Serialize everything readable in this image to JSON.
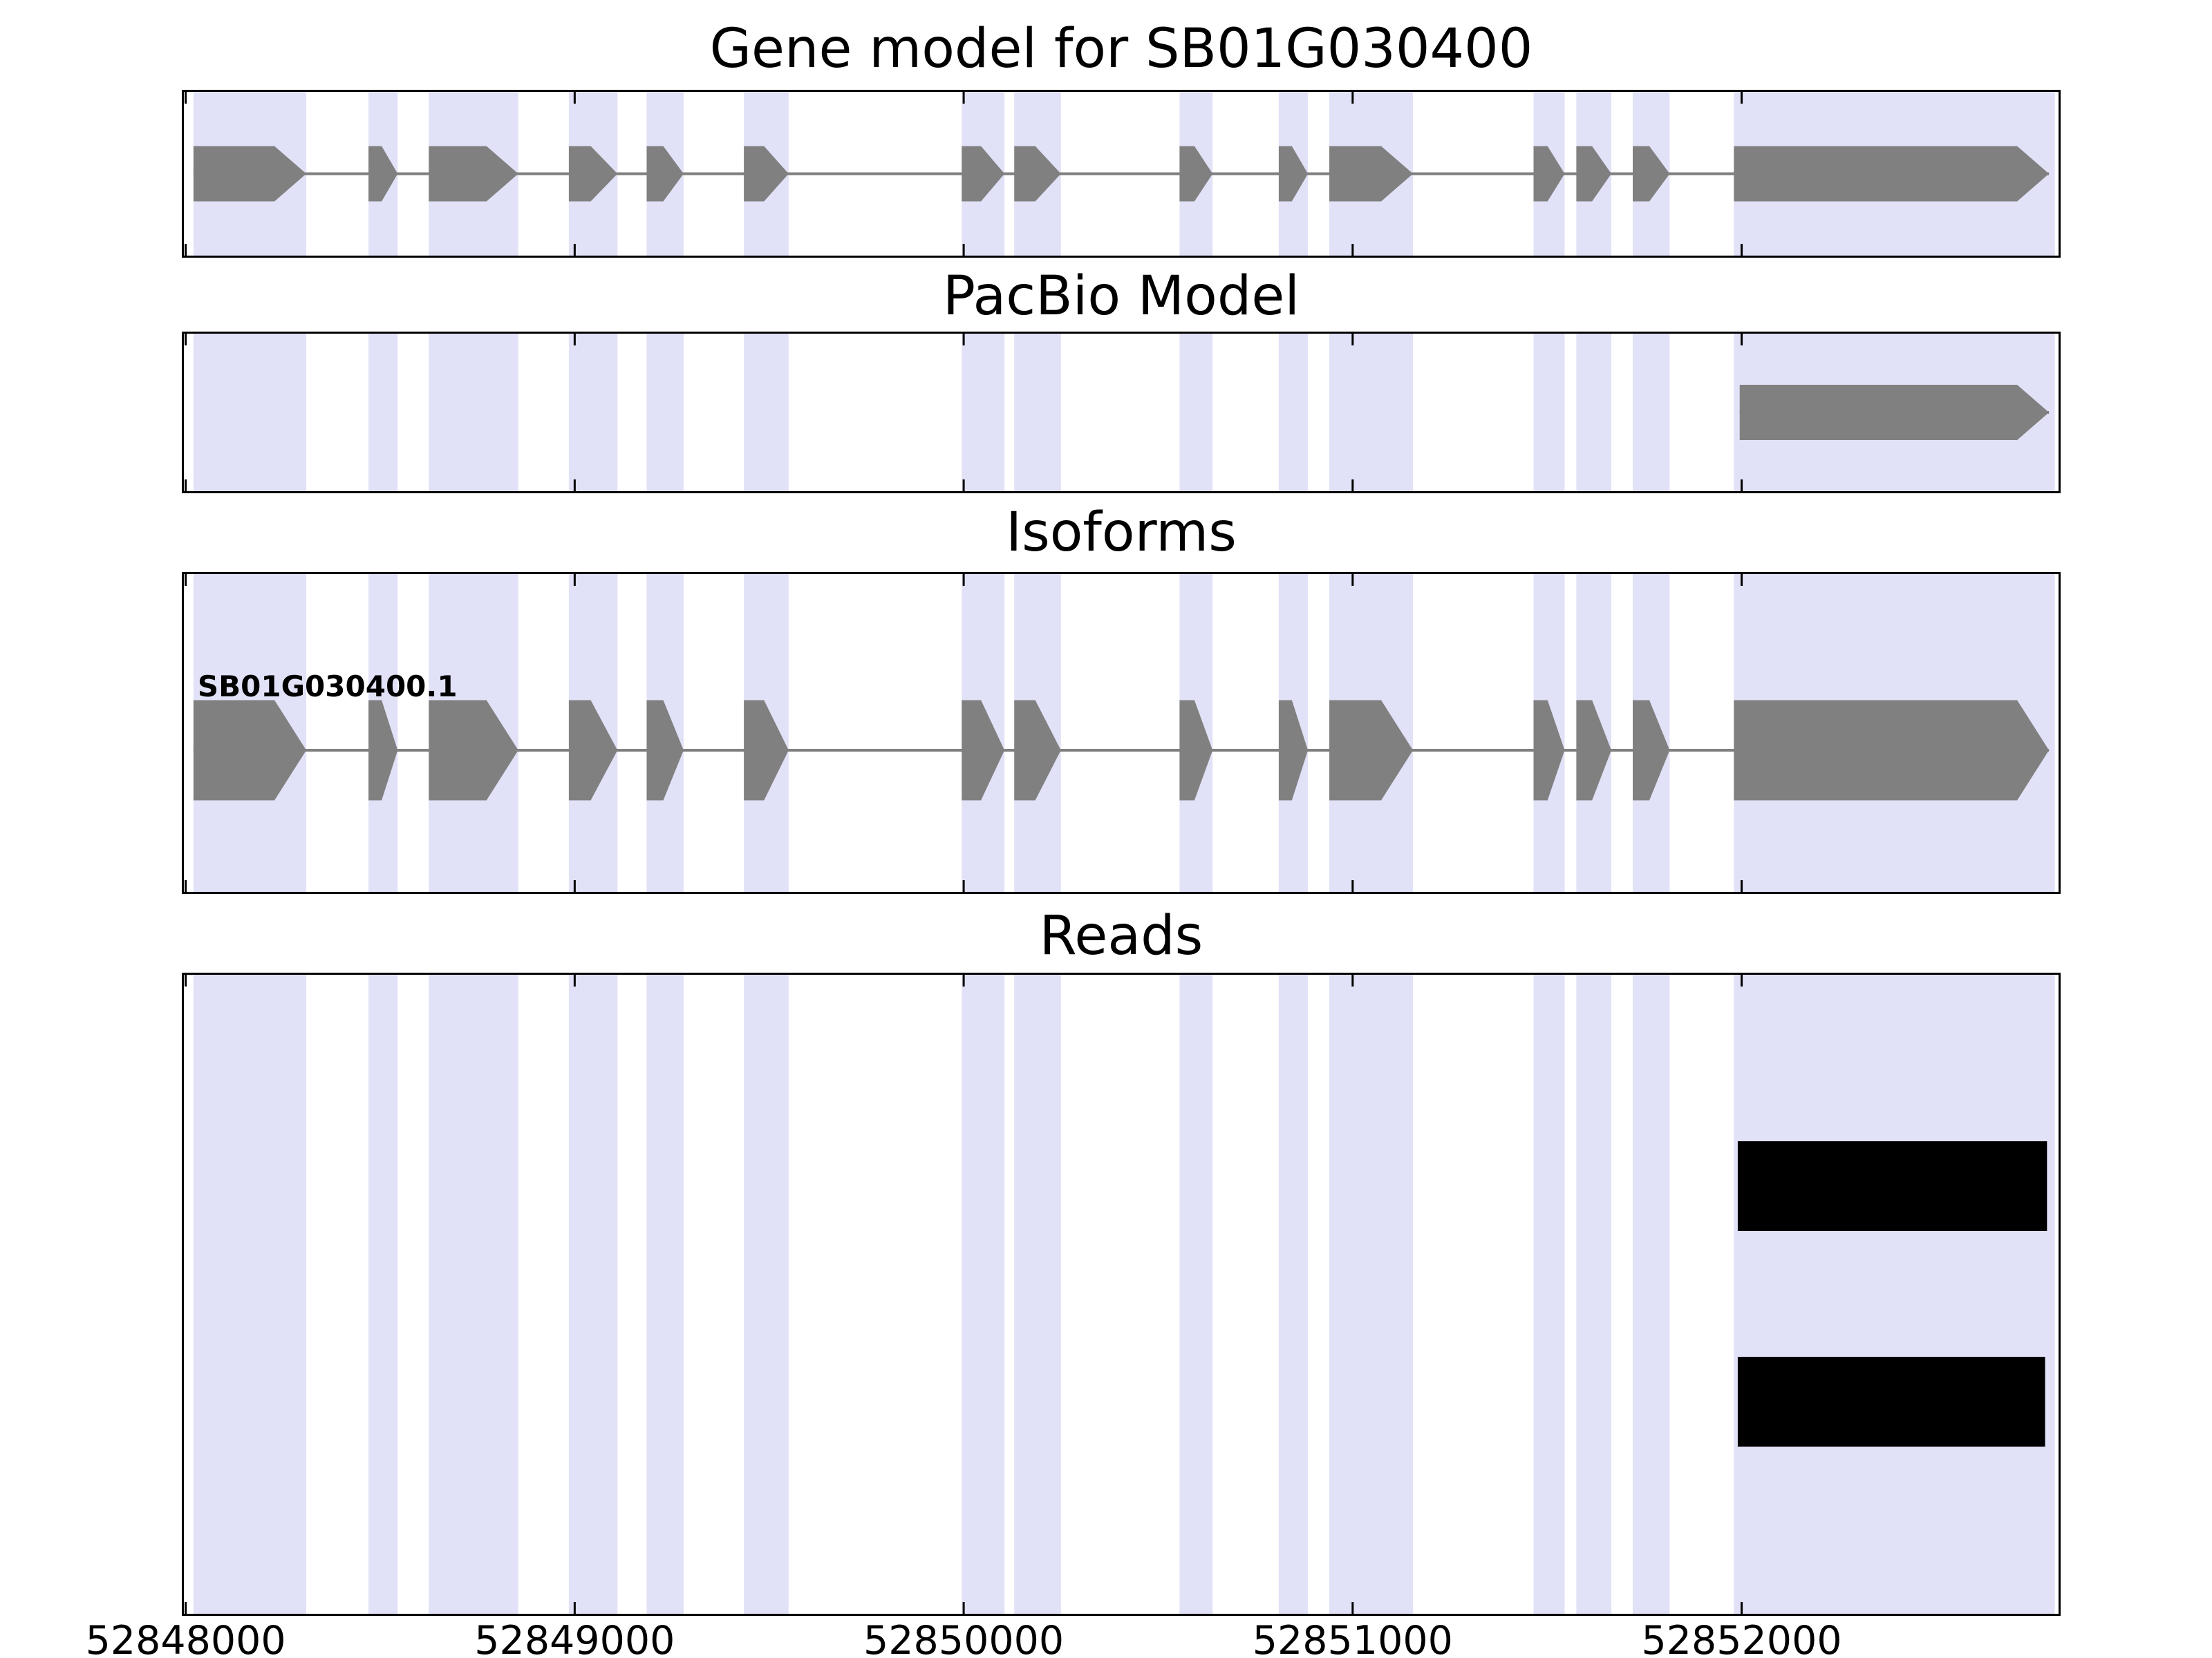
{
  "figure": {
    "background_color": "#ffffff",
    "band_color": "#e1e1f7",
    "exon_color": "#808080",
    "intron_line_color": "#808080",
    "read_color": "#000000",
    "axis_color": "#000000",
    "text_color": "#000000"
  },
  "chart_data": {
    "type": "gene-model-tracks",
    "gene_id": "SB01G030400",
    "x_range": [
      52847990,
      52852820
    ],
    "x_ticks": [
      52848000,
      52849000,
      52850000,
      52851000,
      52852000
    ],
    "x_tick_labels": [
      "52848000",
      "52849000",
      "52850000",
      "52851000",
      "52852000"
    ],
    "highlight_bands": [
      [
        52848020,
        52848310
      ],
      [
        52848470,
        52848545
      ],
      [
        52848625,
        52848855
      ],
      [
        52848985,
        52849110
      ],
      [
        52849185,
        52849280
      ],
      [
        52849435,
        52849550
      ],
      [
        52849995,
        52850105
      ],
      [
        52850130,
        52850250
      ],
      [
        52850555,
        52850640
      ],
      [
        52850810,
        52850885
      ],
      [
        52850940,
        52851155
      ],
      [
        52851465,
        52851545
      ],
      [
        52851575,
        52851665
      ],
      [
        52851720,
        52851815
      ],
      [
        52851980,
        52852805
      ]
    ],
    "panels": [
      {
        "title": "Gene model for SB01G030400",
        "kind": "gene",
        "strand": "+",
        "exons": [
          [
            52848020,
            52848310
          ],
          [
            52848470,
            52848545
          ],
          [
            52848625,
            52848855
          ],
          [
            52848985,
            52849110
          ],
          [
            52849185,
            52849280
          ],
          [
            52849435,
            52849550
          ],
          [
            52849995,
            52850105
          ],
          [
            52850130,
            52850250
          ],
          [
            52850555,
            52850640
          ],
          [
            52850810,
            52850885
          ],
          [
            52850940,
            52851155
          ],
          [
            52851465,
            52851545
          ],
          [
            52851575,
            52851665
          ],
          [
            52851720,
            52851815
          ],
          [
            52851980,
            52852790
          ]
        ]
      },
      {
        "title": "PacBio Model",
        "kind": "gene",
        "strand": "+",
        "exons": [
          [
            52851995,
            52852790
          ]
        ]
      },
      {
        "title": "Isoforms",
        "kind": "gene",
        "strand": "+",
        "label": "SB01G030400.1",
        "exons": [
          [
            52848020,
            52848310
          ],
          [
            52848470,
            52848545
          ],
          [
            52848625,
            52848855
          ],
          [
            52848985,
            52849110
          ],
          [
            52849185,
            52849280
          ],
          [
            52849435,
            52849550
          ],
          [
            52849995,
            52850105
          ],
          [
            52850130,
            52850250
          ],
          [
            52850555,
            52850640
          ],
          [
            52850810,
            52850885
          ],
          [
            52850940,
            52851155
          ],
          [
            52851465,
            52851545
          ],
          [
            52851575,
            52851665
          ],
          [
            52851720,
            52851815
          ],
          [
            52851980,
            52852790
          ]
        ]
      },
      {
        "title": "Reads",
        "kind": "reads",
        "reads": [
          {
            "start": 52851990,
            "end": 52852785,
            "row": 0
          },
          {
            "start": 52851990,
            "end": 52852780,
            "row": 1
          }
        ]
      }
    ]
  }
}
